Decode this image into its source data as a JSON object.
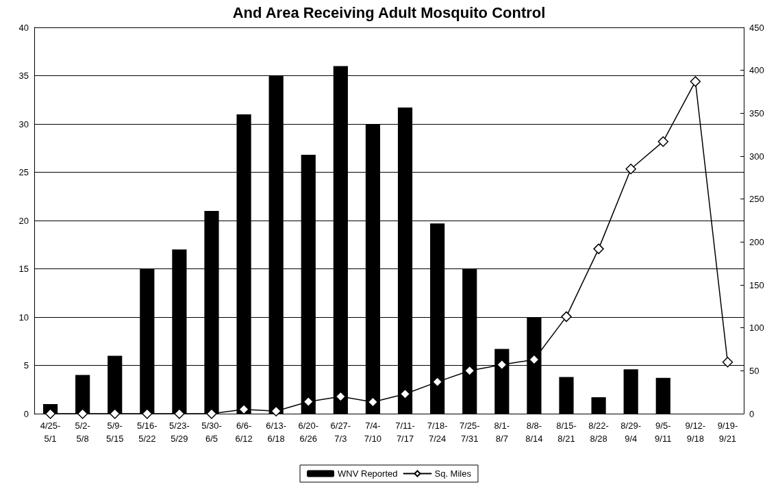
{
  "chart_data": {
    "type": "bar",
    "title": "And Area Receiving Adult Mosquito Control",
    "categories": [
      "4/25-\n5/1",
      "5/2-\n5/8",
      "5/9-\n5/15",
      "5/16-\n5/22",
      "5/23-\n5/29",
      "5/30-\n6/5",
      "6/6-\n6/12",
      "6/13-\n6/18",
      "6/20-\n6/26",
      "6/27-\n7/3",
      "7/4-\n7/10",
      "7/11-\n7/17",
      "7/18-\n7/24",
      "7/25-\n7/31",
      "8/1-\n8/7",
      "8/8-\n8/14",
      "8/15-\n8/21",
      "8/22-\n8/28",
      "8/29-\n9/4",
      "9/5-\n9/11",
      "9/12-\n9/18",
      "9/19-\n9/21"
    ],
    "series": [
      {
        "name": "WNV Reported",
        "color": "#000000",
        "values": [
          1,
          4,
          6,
          15,
          17,
          21,
          31,
          35,
          26.8,
          36,
          30,
          31.7,
          19.7,
          15,
          6.7,
          10,
          3.8,
          1.7,
          4.6,
          3.7,
          0,
          0
        ]
      },
      {
        "name": "Sq. Miles",
        "type": "line",
        "axis": "y2",
        "color": "#000000",
        "marker": "diamond",
        "line_style": "solid",
        "values": [
          0,
          0,
          0,
          0,
          0,
          0,
          5,
          3,
          14,
          20,
          13.5,
          23,
          37,
          50,
          57,
          63,
          113,
          192,
          285,
          317,
          387,
          60
        ]
      }
    ],
    "ylim": [
      0,
      40
    ],
    "yticks": [
      0,
      5,
      10,
      15,
      20,
      25,
      30,
      35,
      40
    ],
    "y2lim": [
      0,
      450
    ],
    "y2ticks": [
      0,
      50,
      100,
      150,
      200,
      250,
      300,
      350,
      400,
      450
    ],
    "grid": "y",
    "legend": "bottom"
  }
}
